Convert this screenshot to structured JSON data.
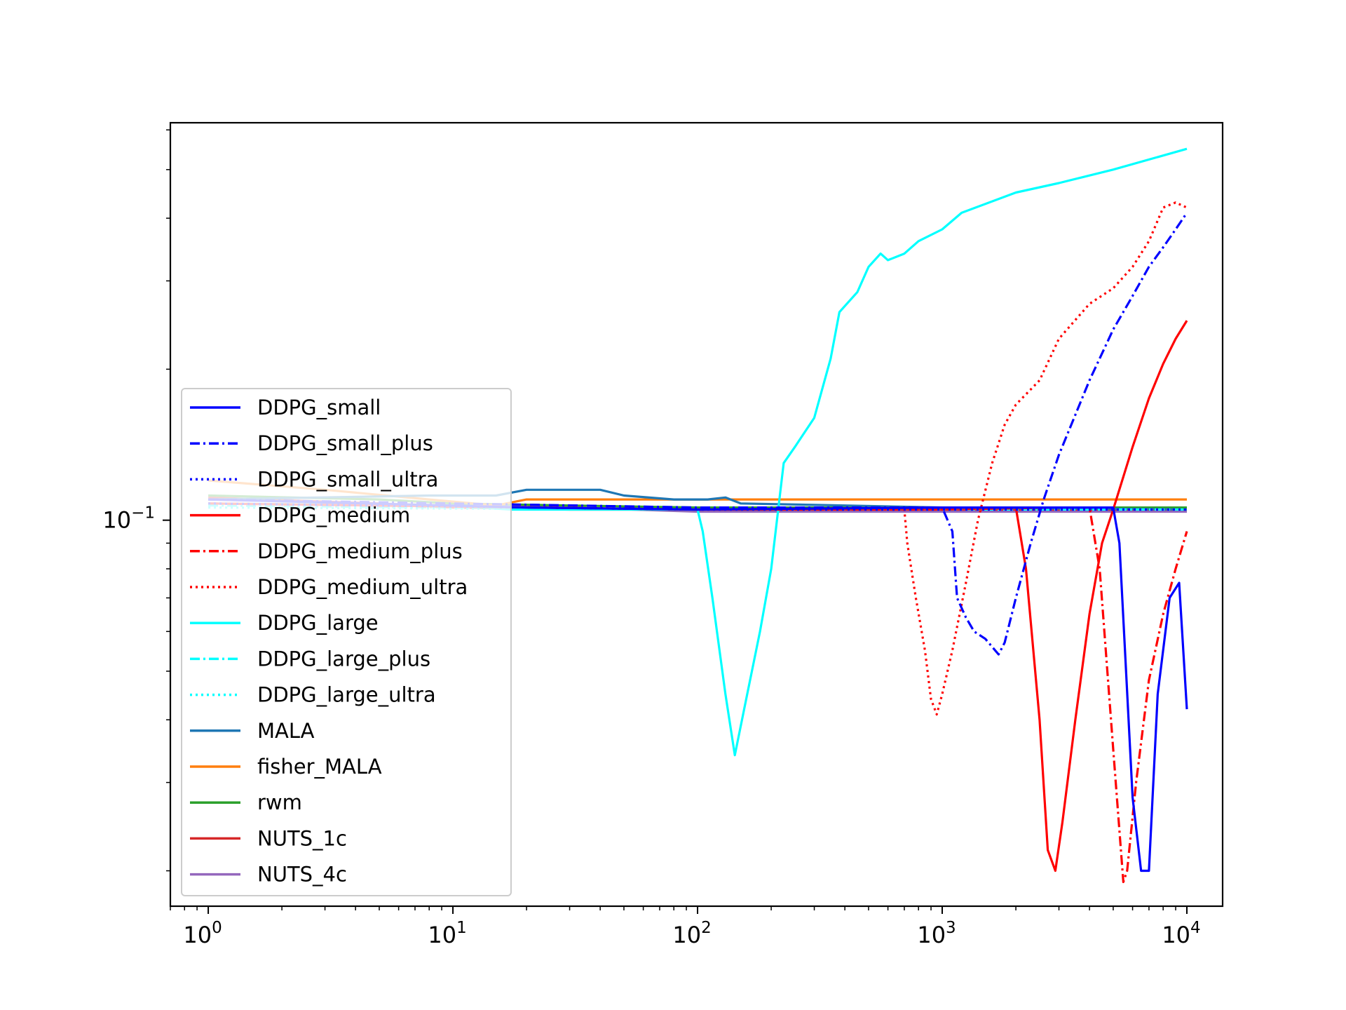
{
  "chart_data": {
    "type": "line",
    "title": "",
    "xlabel": "",
    "ylabel": "",
    "xscale": "log",
    "yscale": "log",
    "xlim": [
      0.7,
      14000
    ],
    "ylim": [
      0.017,
      0.62
    ],
    "grid": false,
    "legend_position": "lower-left",
    "x_ticks": [
      {
        "value": 1,
        "label": "10^0",
        "base": "10",
        "exp": "0"
      },
      {
        "value": 10,
        "label": "10^1",
        "base": "10",
        "exp": "1"
      },
      {
        "value": 100,
        "label": "10^2",
        "base": "10",
        "exp": "2"
      },
      {
        "value": 1000,
        "label": "10^3",
        "base": "10",
        "exp": "3"
      },
      {
        "value": 10000,
        "label": "10^4",
        "base": "10",
        "exp": "4"
      }
    ],
    "y_ticks": [
      {
        "value": 0.1,
        "label": "10^-1",
        "base": "10",
        "exp": "−1"
      }
    ],
    "series": [
      {
        "name": "DDPG_small",
        "color": "#0000ff",
        "dash": "solid",
        "points": [
          [
            1,
            0.11
          ],
          [
            20,
            0.106
          ],
          [
            100,
            0.105
          ],
          [
            1000,
            0.106
          ],
          [
            4000,
            0.106
          ],
          [
            5000,
            0.106
          ],
          [
            5300,
            0.09
          ],
          [
            6000,
            0.028
          ],
          [
            6500,
            0.02
          ],
          [
            7000,
            0.02
          ],
          [
            7600,
            0.045
          ],
          [
            8500,
            0.07
          ],
          [
            9300,
            0.075
          ],
          [
            10000,
            0.042
          ]
        ]
      },
      {
        "name": "DDPG_small_plus",
        "color": "#0000ff",
        "dash": "dashdot",
        "points": [
          [
            1,
            0.11
          ],
          [
            100,
            0.106
          ],
          [
            1000,
            0.106
          ],
          [
            1100,
            0.095
          ],
          [
            1150,
            0.07
          ],
          [
            1250,
            0.064
          ],
          [
            1350,
            0.06
          ],
          [
            1500,
            0.058
          ],
          [
            1700,
            0.054
          ],
          [
            1800,
            0.057
          ],
          [
            2000,
            0.07
          ],
          [
            2300,
            0.09
          ],
          [
            2600,
            0.11
          ],
          [
            3000,
            0.135
          ],
          [
            4000,
            0.19
          ],
          [
            5000,
            0.24
          ],
          [
            6000,
            0.28
          ],
          [
            7000,
            0.32
          ],
          [
            8000,
            0.35
          ],
          [
            9000,
            0.38
          ],
          [
            10000,
            0.41
          ]
        ]
      },
      {
        "name": "DDPG_small_ultra",
        "color": "#0000ff",
        "dash": "dotted",
        "points": [
          [
            1,
            0.108
          ],
          [
            100,
            0.105
          ],
          [
            1000,
            0.105
          ],
          [
            10000,
            0.105
          ]
        ]
      },
      {
        "name": "DDPG_medium",
        "color": "#ff0000",
        "dash": "solid",
        "points": [
          [
            1,
            0.108
          ],
          [
            100,
            0.105
          ],
          [
            1000,
            0.106
          ],
          [
            2000,
            0.106
          ],
          [
            2200,
            0.08
          ],
          [
            2500,
            0.04
          ],
          [
            2700,
            0.022
          ],
          [
            2900,
            0.02
          ],
          [
            3100,
            0.025
          ],
          [
            3500,
            0.04
          ],
          [
            4000,
            0.065
          ],
          [
            4500,
            0.09
          ],
          [
            5000,
            0.105
          ],
          [
            6000,
            0.14
          ],
          [
            7000,
            0.175
          ],
          [
            8000,
            0.205
          ],
          [
            9000,
            0.23
          ],
          [
            10000,
            0.25
          ]
        ]
      },
      {
        "name": "DDPG_medium_plus",
        "color": "#ff0000",
        "dash": "dashdot",
        "points": [
          [
            1,
            0.108
          ],
          [
            100,
            0.105
          ],
          [
            1000,
            0.105
          ],
          [
            3000,
            0.106
          ],
          [
            4000,
            0.106
          ],
          [
            4400,
            0.08
          ],
          [
            5000,
            0.035
          ],
          [
            5500,
            0.019
          ],
          [
            5700,
            0.02
          ],
          [
            6200,
            0.03
          ],
          [
            7000,
            0.048
          ],
          [
            8000,
            0.065
          ],
          [
            9000,
            0.08
          ],
          [
            10000,
            0.095
          ]
        ]
      },
      {
        "name": "DDPG_medium_ultra",
        "color": "#ff0000",
        "dash": "dotted",
        "points": [
          [
            1,
            0.108
          ],
          [
            100,
            0.105
          ],
          [
            700,
            0.105
          ],
          [
            720,
            0.09
          ],
          [
            780,
            0.07
          ],
          [
            850,
            0.055
          ],
          [
            900,
            0.044
          ],
          [
            950,
            0.041
          ],
          [
            1000,
            0.045
          ],
          [
            1100,
            0.055
          ],
          [
            1250,
            0.075
          ],
          [
            1400,
            0.1
          ],
          [
            1600,
            0.13
          ],
          [
            1800,
            0.155
          ],
          [
            2000,
            0.17
          ],
          [
            2500,
            0.19
          ],
          [
            3000,
            0.23
          ],
          [
            4000,
            0.27
          ],
          [
            5000,
            0.29
          ],
          [
            6000,
            0.32
          ],
          [
            7000,
            0.36
          ],
          [
            8000,
            0.42
          ],
          [
            9000,
            0.43
          ],
          [
            10000,
            0.42
          ]
        ]
      },
      {
        "name": "DDPG_large",
        "color": "#00ffff",
        "dash": "solid",
        "points": [
          [
            1,
            0.108
          ],
          [
            10,
            0.107
          ],
          [
            17,
            0.105
          ],
          [
            50,
            0.105
          ],
          [
            100,
            0.105
          ],
          [
            105,
            0.095
          ],
          [
            115,
            0.07
          ],
          [
            130,
            0.045
          ],
          [
            142,
            0.034
          ],
          [
            155,
            0.042
          ],
          [
            180,
            0.06
          ],
          [
            200,
            0.08
          ],
          [
            225,
            0.13
          ],
          [
            250,
            0.14
          ],
          [
            300,
            0.16
          ],
          [
            350,
            0.21
          ],
          [
            380,
            0.26
          ],
          [
            450,
            0.285
          ],
          [
            500,
            0.32
          ],
          [
            560,
            0.34
          ],
          [
            600,
            0.33
          ],
          [
            700,
            0.34
          ],
          [
            800,
            0.36
          ],
          [
            1000,
            0.38
          ],
          [
            1200,
            0.41
          ],
          [
            2000,
            0.45
          ],
          [
            3000,
            0.47
          ],
          [
            5000,
            0.5
          ],
          [
            10000,
            0.55
          ]
        ]
      },
      {
        "name": "DDPG_large_plus",
        "color": "#00ffff",
        "dash": "dashdot",
        "points": [
          [
            1,
            0.107
          ],
          [
            100,
            0.105
          ],
          [
            10000,
            0.105
          ]
        ]
      },
      {
        "name": "DDPG_large_ultra",
        "color": "#00ffff",
        "dash": "dotted",
        "points": [
          [
            1,
            0.106
          ],
          [
            100,
            0.105
          ],
          [
            10000,
            0.105
          ]
        ]
      },
      {
        "name": "MALA",
        "color": "#1f77b4",
        "dash": "solid",
        "points": [
          [
            1,
            0.11
          ],
          [
            8,
            0.112
          ],
          [
            15,
            0.112
          ],
          [
            20,
            0.115
          ],
          [
            40,
            0.115
          ],
          [
            50,
            0.112
          ],
          [
            80,
            0.11
          ],
          [
            110,
            0.11
          ],
          [
            130,
            0.111
          ],
          [
            150,
            0.108
          ],
          [
            400,
            0.107
          ],
          [
            1000,
            0.106
          ],
          [
            10000,
            0.105
          ]
        ]
      },
      {
        "name": "fisher_MALA",
        "color": "#ff7f0e",
        "dash": "solid",
        "points": [
          [
            1,
            0.12
          ],
          [
            3,
            0.115
          ],
          [
            8,
            0.11
          ],
          [
            15,
            0.107
          ],
          [
            20,
            0.11
          ],
          [
            50,
            0.11
          ],
          [
            100,
            0.11
          ],
          [
            500,
            0.11
          ],
          [
            1000,
            0.11
          ],
          [
            1200,
            0.11
          ],
          [
            10000,
            0.11
          ]
        ]
      },
      {
        "name": "rwm",
        "color": "#2ca02c",
        "dash": "solid",
        "points": [
          [
            1,
            0.112
          ],
          [
            5,
            0.11
          ],
          [
            10,
            0.108
          ],
          [
            30,
            0.107
          ],
          [
            100,
            0.106
          ],
          [
            300,
            0.106
          ],
          [
            1000,
            0.106
          ],
          [
            10000,
            0.106
          ]
        ]
      },
      {
        "name": "NUTS_1c",
        "color": "#d62728",
        "dash": "solid",
        "points": [
          [
            1,
            0.111
          ],
          [
            5,
            0.108
          ],
          [
            10,
            0.106
          ],
          [
            30,
            0.105
          ],
          [
            100,
            0.105
          ],
          [
            1000,
            0.105
          ],
          [
            10000,
            0.105
          ]
        ]
      },
      {
        "name": "NUTS_4c",
        "color": "#9467bd",
        "dash": "solid",
        "points": [
          [
            1,
            0.11
          ],
          [
            5,
            0.108
          ],
          [
            10,
            0.107
          ],
          [
            30,
            0.106
          ],
          [
            100,
            0.104
          ],
          [
            300,
            0.104
          ],
          [
            1000,
            0.104
          ],
          [
            10000,
            0.104
          ]
        ]
      }
    ]
  }
}
